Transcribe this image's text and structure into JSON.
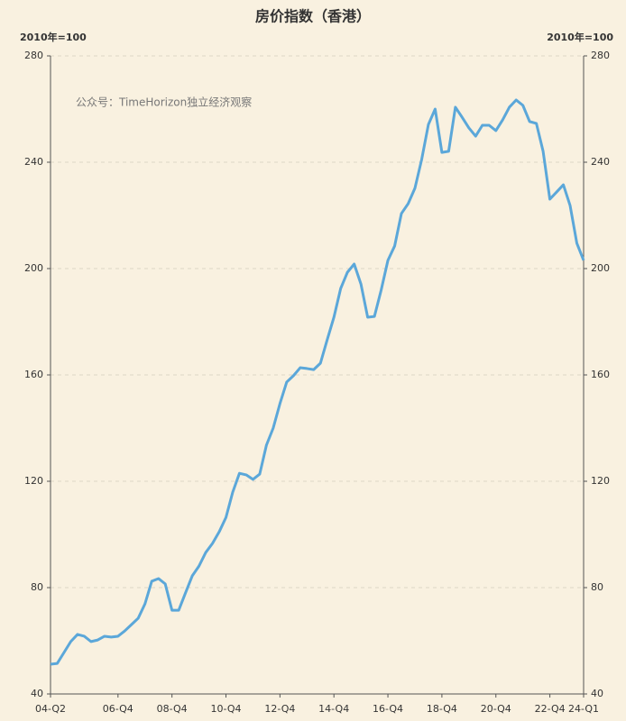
{
  "chart_data": {
    "type": "line",
    "title": "房价指数（香港）",
    "y_label": "2010年=100",
    "y2_label": "2010年=100",
    "annotation": "公众号：TimeHorizon独立经济观察",
    "categories": [
      "04-Q2",
      null,
      null,
      null,
      null,
      null,
      null,
      null,
      null,
      null,
      "06-Q4",
      null,
      null,
      null,
      null,
      null,
      null,
      null,
      "08-Q4",
      null,
      null,
      null,
      null,
      null,
      null,
      null,
      "10-Q4",
      null,
      null,
      null,
      null,
      null,
      null,
      null,
      "12-Q4",
      null,
      null,
      null,
      null,
      null,
      null,
      null,
      "14-Q4",
      null,
      null,
      null,
      null,
      null,
      null,
      null,
      "16-Q4",
      null,
      null,
      null,
      null,
      null,
      null,
      null,
      "18-Q4",
      null,
      null,
      null,
      null,
      null,
      null,
      null,
      "20-Q4",
      null,
      null,
      null,
      null,
      null,
      null,
      null,
      "22-Q4",
      null,
      null,
      null,
      null,
      "24-Q1"
    ],
    "values": [
      51.2,
      51.5,
      55.6,
      59.7,
      62.4,
      61.7,
      59.7,
      60.3,
      61.7,
      61.4,
      61.7,
      63.7,
      66.1,
      68.5,
      73.9,
      82.4,
      83.4,
      81.4,
      71.5,
      71.5,
      78.0,
      84.4,
      88.1,
      93.2,
      96.6,
      101.0,
      106.4,
      115.9,
      123.0,
      122.4,
      120.7,
      122.7,
      133.6,
      140.0,
      149.2,
      157.3,
      159.7,
      162.7,
      162.4,
      162.0,
      164.4,
      173.2,
      181.7,
      192.5,
      198.6,
      201.7,
      194.2,
      181.7,
      182.0,
      191.9,
      203.1,
      208.5,
      220.7,
      224.4,
      230.2,
      241.0,
      254.2,
      260.0,
      243.7,
      244.1,
      260.7,
      256.9,
      252.9,
      249.8,
      253.9,
      253.9,
      251.9,
      255.9,
      260.7,
      263.4,
      261.4,
      255.3,
      254.6,
      244.1,
      226.1,
      228.8,
      231.5,
      223.7,
      209.5,
      203.1
    ],
    "color": "#5ba7d9",
    "ylim": [
      40,
      280
    ],
    "yticks": [
      40,
      80,
      120,
      160,
      200,
      240,
      280
    ],
    "y2lim": [
      40,
      280
    ],
    "y2ticks": [
      40,
      80,
      120,
      160,
      200,
      240,
      280
    ],
    "grid": true
  }
}
